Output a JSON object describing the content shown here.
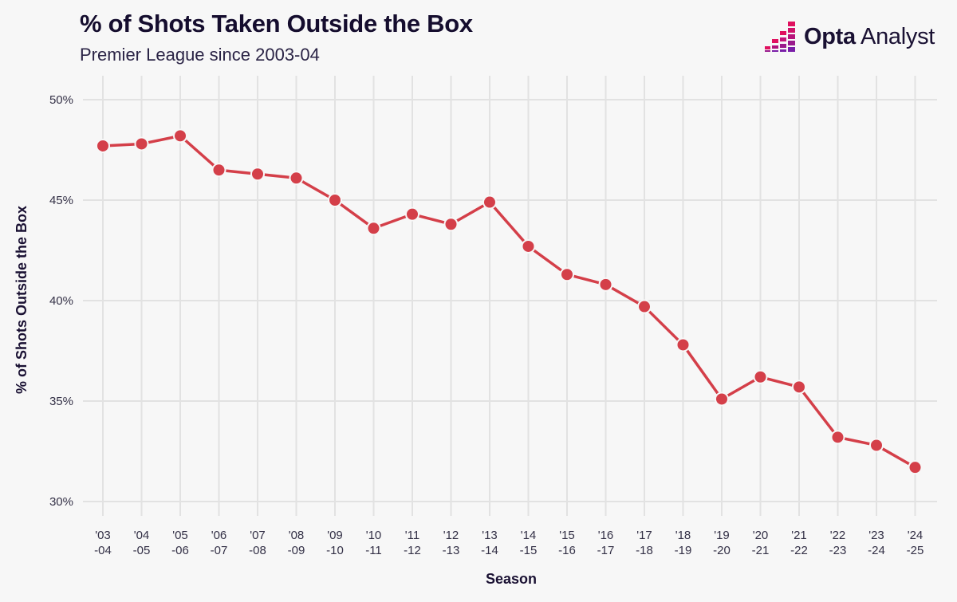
{
  "header": {
    "title": "% of Shots Taken Outside the Box",
    "subtitle": "Premier League since 2003-04"
  },
  "brand": {
    "name_bold": "Opta",
    "name_light": "Analyst",
    "logo_icon": "opta-pixel-bars-icon",
    "logo_colors": [
      "#e0115f",
      "#b0117a",
      "#7a1fa8"
    ]
  },
  "colors": {
    "line": "#d43f49",
    "grid": "#e2e2e2",
    "background": "#f7f7f7"
  },
  "chart_data": {
    "type": "line",
    "title": "% of Shots Taken Outside the Box",
    "subtitle": "Premier League since 2003-04",
    "xlabel": "Season",
    "ylabel": "% of Shots Outside the Box",
    "ylim": [
      30,
      50
    ],
    "yticks": [
      30,
      35,
      40,
      45,
      50
    ],
    "ytick_labels": [
      "30%",
      "35%",
      "40%",
      "45%",
      "50%"
    ],
    "grid": true,
    "categories": [
      [
        "'03",
        "-04"
      ],
      [
        "'04",
        "-05"
      ],
      [
        "'05",
        "-06"
      ],
      [
        "'06",
        "-07"
      ],
      [
        "'07",
        "-08"
      ],
      [
        "'08",
        "-09"
      ],
      [
        "'09",
        "-10"
      ],
      [
        "'10",
        "-11"
      ],
      [
        "'11",
        "-12"
      ],
      [
        "'12",
        "-13"
      ],
      [
        "'13",
        "-14"
      ],
      [
        "'14",
        "-15"
      ],
      [
        "'15",
        "-16"
      ],
      [
        "'16",
        "-17"
      ],
      [
        "'17",
        "-18"
      ],
      [
        "'18",
        "-19"
      ],
      [
        "'19",
        "-20"
      ],
      [
        "'20",
        "-21"
      ],
      [
        "'21",
        "-22"
      ],
      [
        "'22",
        "-23"
      ],
      [
        "'23",
        "-24"
      ],
      [
        "'24",
        "-25"
      ]
    ],
    "series": [
      {
        "name": "% of Shots Outside the Box",
        "values": [
          47.7,
          47.8,
          48.2,
          46.5,
          46.3,
          46.1,
          45.0,
          43.6,
          44.3,
          43.8,
          44.9,
          42.7,
          41.3,
          40.8,
          39.7,
          37.8,
          35.1,
          36.2,
          35.7,
          33.2,
          32.8,
          31.7
        ]
      }
    ]
  }
}
